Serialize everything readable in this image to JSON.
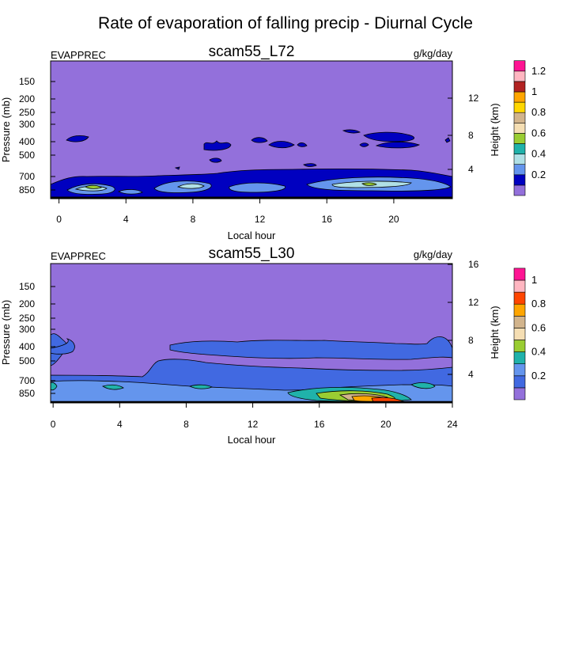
{
  "figure_title": "Rate of evaporation of falling precip - Diurnal Cycle",
  "colors": {
    "background_fill": "#9370DB",
    "contour_line": "#000000"
  },
  "chart_data": [
    {
      "type": "heatmap",
      "title": "scam55_L72",
      "left_label": "EVAPPREC",
      "units": "g/kg/day",
      "xlabel": "Local hour",
      "ylabel": "Pressure (mb)",
      "y2label": "Height (km)",
      "x_ticks": [
        "0",
        "4",
        "8",
        "12",
        "16",
        "20"
      ],
      "xlim": [
        -0.5,
        23.5
      ],
      "y_ticks": [
        "150",
        "200",
        "250",
        "300",
        "400",
        "500",
        "700",
        "850"
      ],
      "y2_ticks": [
        "4",
        "8",
        "12"
      ],
      "colorbar_labels": [
        "0.2",
        "0.4",
        "0.6",
        "0.8",
        "1",
        "1.2"
      ],
      "colorbar_colors": [
        "#9370DB",
        "#0000C0",
        "#6495ED",
        "#B0E0E6",
        "#20B2AA",
        "#9ACD32",
        "#F5DEB3",
        "#D2B48C",
        "#FFD700",
        "#FFA500",
        "#B22222",
        "#FFB6C1",
        "#FF1493"
      ]
    },
    {
      "type": "heatmap",
      "title": "scam55_L30",
      "left_label": "EVAPPREC",
      "units": "g/kg/day",
      "xlabel": "Local hour",
      "ylabel": "Pressure (mb)",
      "y2label": "Height (km)",
      "x_ticks": [
        "0",
        "4",
        "8",
        "12",
        "16",
        "20",
        "24"
      ],
      "xlim": [
        -0.15,
        24
      ],
      "y_ticks": [
        "150",
        "200",
        "250",
        "300",
        "400",
        "500",
        "700",
        "850"
      ],
      "y2_ticks": [
        "4",
        "8",
        "12",
        "16"
      ],
      "colorbar_labels": [
        "0.2",
        "0.4",
        "0.6",
        "0.8",
        "1"
      ],
      "colorbar_colors": [
        "#9370DB",
        "#4169E1",
        "#6495ED",
        "#20B2AA",
        "#9ACD32",
        "#F5DEB3",
        "#D2B48C",
        "#FFA500",
        "#FF4500",
        "#FFB6C1",
        "#FF1493"
      ]
    }
  ]
}
